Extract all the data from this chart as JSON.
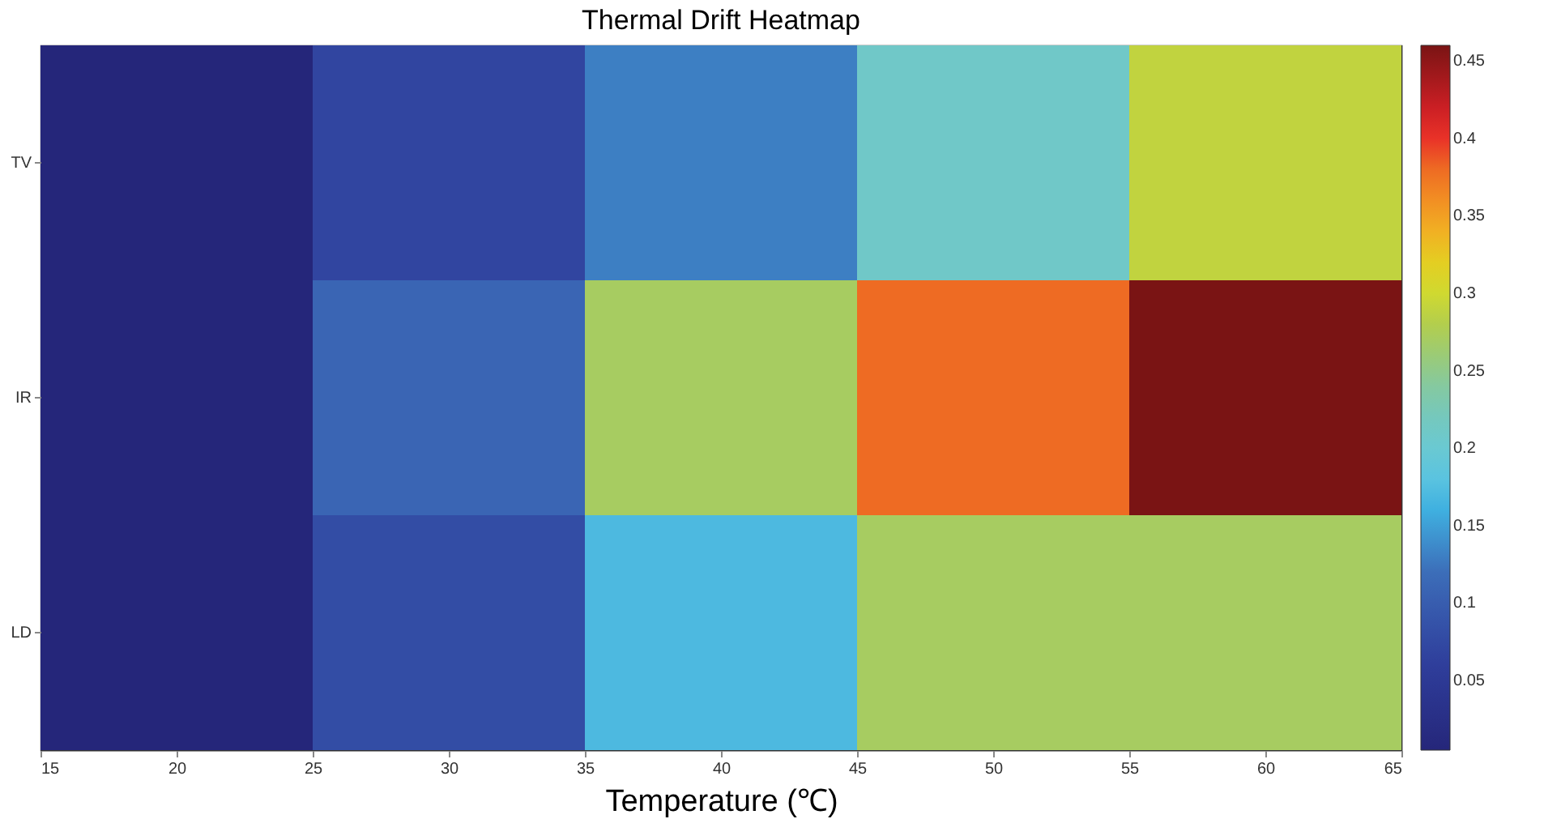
{
  "chart_data": {
    "type": "heatmap",
    "title": "Thermal Drift Heatmap",
    "xlabel": "Temperature (℃)",
    "x": [
      20,
      30,
      40,
      50,
      60
    ],
    "y_categories": [
      "TV",
      "IR",
      "LD"
    ],
    "cells": [
      [
        0.005,
        0.07,
        0.13,
        0.21,
        0.29
      ],
      [
        0.005,
        0.11,
        0.27,
        0.38,
        0.46
      ],
      [
        0.005,
        0.08,
        0.17,
        0.27,
        0.27
      ]
    ],
    "xlim": [
      15,
      65
    ],
    "xticks": [
      15,
      20,
      25,
      30,
      35,
      40,
      45,
      50,
      55,
      60,
      65
    ],
    "clim": [
      0.005,
      0.46
    ],
    "cticks": [
      0.05,
      0.1,
      0.15,
      0.2,
      0.25,
      0.3,
      0.35,
      0.4,
      0.45
    ]
  }
}
